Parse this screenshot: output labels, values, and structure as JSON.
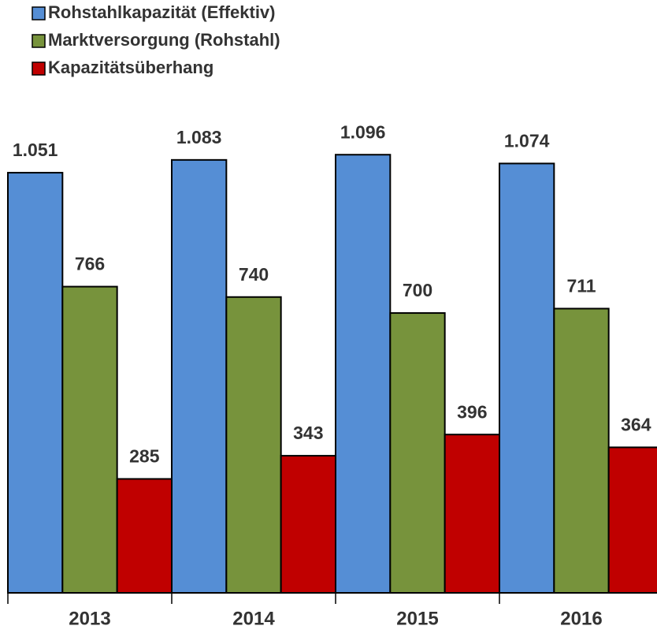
{
  "chart_data": {
    "type": "bar",
    "categories": [
      "2013",
      "2014",
      "2015",
      "2016"
    ],
    "series": [
      {
        "name": "Rohstahlkapazität (Effektiv)",
        "color": "#558ed5",
        "values": [
          1051,
          1083,
          1096,
          1074
        ],
        "value_labels": [
          "1.051",
          "1.083",
          "1.096",
          "1.074"
        ]
      },
      {
        "name": "Marktversorgung (Rohstahl)",
        "color": "#77933c",
        "values": [
          766,
          740,
          700,
          711
        ]
      },
      {
        "name": "Kapazitätsüberhang",
        "color": "#c00000",
        "values": [
          285,
          343,
          396,
          364
        ]
      }
    ],
    "ylim": [
      0,
      1483
    ],
    "legend": "top-left"
  }
}
